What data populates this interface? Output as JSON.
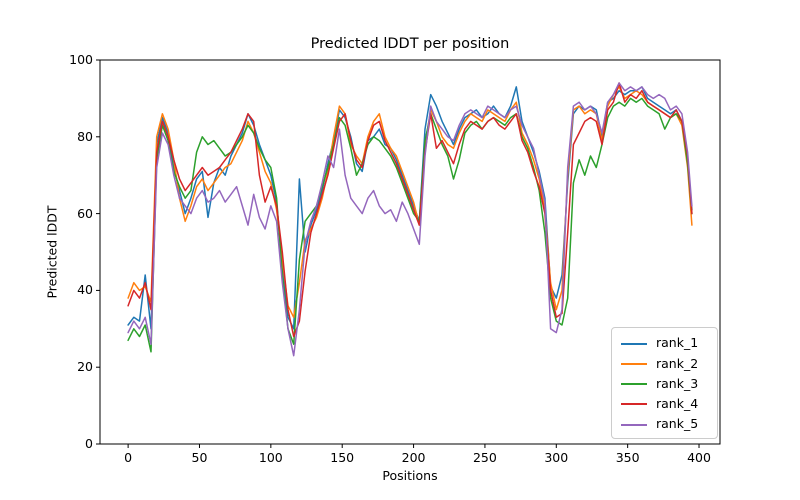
{
  "chart_data": {
    "type": "line",
    "title": "Predicted lDDT per position",
    "xlabel": "Positions",
    "ylabel": "Predicted lDDT",
    "xlim": [
      -19.7,
      414.7
    ],
    "ylim": [
      0,
      100
    ],
    "xticks": [
      0,
      50,
      100,
      150,
      200,
      250,
      300,
      350,
      400
    ],
    "yticks": [
      0,
      20,
      40,
      60,
      80,
      100
    ],
    "grid": false,
    "legend_position": "lower right",
    "x": [
      0,
      4,
      8,
      12,
      16,
      20,
      24,
      28,
      32,
      36,
      40,
      44,
      48,
      52,
      56,
      60,
      64,
      68,
      72,
      76,
      80,
      84,
      88,
      92,
      96,
      100,
      104,
      108,
      112,
      116,
      120,
      124,
      128,
      132,
      136,
      140,
      144,
      148,
      152,
      156,
      160,
      164,
      168,
      172,
      176,
      180,
      184,
      188,
      192,
      196,
      200,
      204,
      208,
      212,
      216,
      220,
      224,
      228,
      232,
      236,
      240,
      244,
      248,
      252,
      256,
      260,
      264,
      268,
      272,
      276,
      280,
      284,
      288,
      292,
      296,
      300,
      304,
      308,
      312,
      316,
      320,
      324,
      328,
      332,
      336,
      340,
      344,
      348,
      352,
      356,
      360,
      364,
      368,
      372,
      376,
      380,
      384,
      388,
      392,
      395
    ],
    "series": [
      {
        "name": "rank_1",
        "color": "#1f77b4",
        "values": [
          31,
          33,
          32,
          44,
          30,
          78,
          85,
          81,
          72,
          66,
          60,
          64,
          69,
          71,
          59,
          68,
          72,
          70,
          75,
          78,
          81,
          86,
          83,
          78,
          74,
          70,
          63,
          46,
          33,
          30,
          69,
          50,
          57,
          61,
          66,
          73,
          79,
          87,
          85,
          80,
          73,
          71,
          79,
          80,
          82,
          78,
          77,
          74,
          70,
          66,
          62,
          58,
          82,
          91,
          88,
          84,
          81,
          78,
          82,
          85,
          86,
          87,
          85,
          86,
          88,
          86,
          85,
          88,
          93,
          84,
          80,
          76,
          71,
          64,
          41,
          38,
          44,
          68,
          86,
          88,
          87,
          88,
          87,
          80,
          89,
          90,
          92,
          91,
          92,
          92,
          93,
          90,
          89,
          88,
          87,
          86,
          87,
          84,
          74,
          61
        ]
      },
      {
        "name": "rank_2",
        "color": "#ff7f0e",
        "values": [
          38,
          42,
          40,
          41,
          37,
          80,
          86,
          82,
          74,
          64,
          58,
          62,
          67,
          69,
          66,
          68,
          70,
          72,
          73,
          76,
          79,
          84,
          81,
          76,
          71,
          68,
          61,
          48,
          36,
          33,
          42,
          53,
          56,
          59,
          64,
          71,
          80,
          88,
          86,
          78,
          75,
          73,
          80,
          84,
          86,
          80,
          77,
          75,
          71,
          67,
          63,
          57,
          78,
          87,
          84,
          80,
          78,
          77,
          81,
          84,
          86,
          85,
          84,
          87,
          86,
          85,
          84,
          87,
          89,
          81,
          78,
          74,
          69,
          61,
          42,
          35,
          40,
          70,
          87,
          88,
          86,
          87,
          86,
          79,
          88,
          91,
          93,
          90,
          91,
          92,
          91,
          89,
          88,
          87,
          86,
          85,
          86,
          83,
          72,
          57
        ]
      },
      {
        "name": "rank_3",
        "color": "#2ca02c",
        "values": [
          27,
          30,
          28,
          31,
          24,
          74,
          83,
          79,
          71,
          67,
          64,
          66,
          76,
          80,
          78,
          79,
          77,
          75,
          76,
          78,
          80,
          83,
          81,
          77,
          74,
          72,
          64,
          44,
          30,
          26,
          48,
          58,
          60,
          62,
          67,
          72,
          78,
          85,
          83,
          77,
          70,
          73,
          78,
          80,
          79,
          77,
          75,
          72,
          68,
          64,
          60,
          58,
          79,
          86,
          82,
          78,
          75,
          69,
          74,
          81,
          83,
          84,
          82,
          84,
          85,
          84,
          83,
          85,
          86,
          80,
          77,
          72,
          66,
          55,
          38,
          32,
          31,
          38,
          68,
          74,
          70,
          75,
          72,
          78,
          85,
          88,
          89,
          88,
          90,
          89,
          90,
          88,
          87,
          86,
          82,
          85,
          86,
          84,
          73,
          60
        ]
      },
      {
        "name": "rank_4",
        "color": "#d62728",
        "values": [
          36,
          40,
          38,
          42,
          35,
          76,
          84,
          80,
          74,
          69,
          66,
          68,
          70,
          72,
          70,
          71,
          72,
          74,
          76,
          79,
          82,
          86,
          84,
          70,
          63,
          67,
          62,
          50,
          35,
          28,
          32,
          45,
          55,
          60,
          65,
          70,
          77,
          84,
          86,
          79,
          74,
          72,
          79,
          83,
          84,
          79,
          76,
          73,
          69,
          65,
          61,
          57,
          76,
          86,
          77,
          79,
          76,
          73,
          78,
          82,
          84,
          83,
          82,
          84,
          85,
          83,
          82,
          84,
          86,
          79,
          76,
          71,
          67,
          60,
          40,
          33,
          34,
          55,
          78,
          81,
          84,
          85,
          84,
          78,
          87,
          89,
          94,
          89,
          91,
          90,
          92,
          89,
          88,
          87,
          86,
          85,
          87,
          84,
          75,
          60
        ]
      },
      {
        "name": "rank_5",
        "color": "#9467bd",
        "values": [
          29,
          32,
          30,
          33,
          26,
          72,
          81,
          78,
          70,
          64,
          62,
          60,
          64,
          66,
          63,
          64,
          66,
          63,
          65,
          67,
          62,
          57,
          65,
          59,
          56,
          62,
          58,
          42,
          30,
          23,
          35,
          52,
          58,
          62,
          68,
          75,
          72,
          82,
          70,
          64,
          62,
          60,
          64,
          66,
          62,
          60,
          61,
          58,
          63,
          60,
          56,
          52,
          75,
          88,
          84,
          82,
          80,
          79,
          83,
          86,
          87,
          86,
          85,
          88,
          87,
          86,
          85,
          87,
          88,
          83,
          80,
          77,
          70,
          63,
          30,
          29,
          35,
          72,
          88,
          89,
          87,
          88,
          86,
          81,
          89,
          91,
          94,
          92,
          93,
          92,
          93,
          91,
          90,
          91,
          90,
          87,
          88,
          86,
          76,
          62
        ]
      }
    ]
  },
  "legend": {
    "entries": [
      "rank_1",
      "rank_2",
      "rank_3",
      "rank_4",
      "rank_5"
    ]
  },
  "axes": {
    "spine_color": "#000000",
    "background": "#ffffff"
  }
}
